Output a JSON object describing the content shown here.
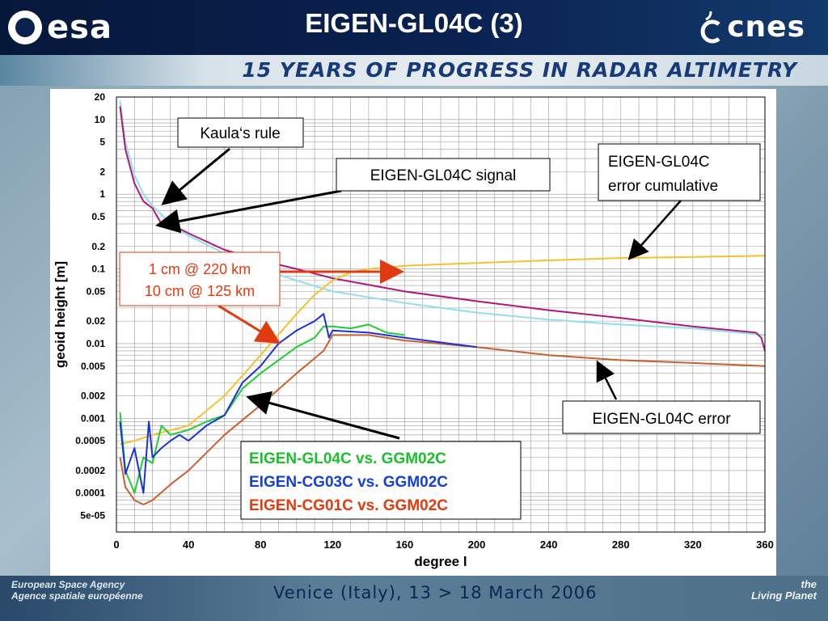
{
  "header": {
    "title": "EIGEN-GL04C (3)",
    "left_logo": "esa",
    "right_logo": "cnes",
    "banner": "15 YEARS OF PROGRESS IN RADAR ALTIMETRY"
  },
  "footer": {
    "agency_line1": "European Space Agency",
    "agency_line2": "Agence spatiale européenne",
    "event": "Venice (Italy), 13 > 18 March 2006",
    "living_line1": "the",
    "living_line2": "Living Planet"
  },
  "chart_data": {
    "type": "line",
    "xlabel": "degree l",
    "ylabel": "geoid height [m]",
    "xlim": [
      0,
      360
    ],
    "ylim": [
      3e-05,
      20
    ],
    "yscale": "log",
    "grid": true,
    "x_ticks": [
      "0",
      "40",
      "80",
      "120",
      "160",
      "200",
      "240",
      "280",
      "320",
      "360"
    ],
    "y_ticks": [
      {
        "v": 20,
        "l": "20"
      },
      {
        "v": 10,
        "l": "10"
      },
      {
        "v": 5,
        "l": "5"
      },
      {
        "v": 2,
        "l": "2"
      },
      {
        "v": 1,
        "l": "1"
      },
      {
        "v": 0.5,
        "l": "0.5"
      },
      {
        "v": 0.2,
        "l": "0.2"
      },
      {
        "v": 0.1,
        "l": "0.1"
      },
      {
        "v": 0.05,
        "l": "0.05"
      },
      {
        "v": 0.02,
        "l": "0.02"
      },
      {
        "v": 0.01,
        "l": "0.01"
      },
      {
        "v": 0.005,
        "l": "0.005"
      },
      {
        "v": 0.002,
        "l": "0.002"
      },
      {
        "v": 0.001,
        "l": "0.001"
      },
      {
        "v": 0.0005,
        "l": "0.0005"
      },
      {
        "v": 0.0002,
        "l": "0.0002"
      },
      {
        "v": 0.0001,
        "l": "0.0001"
      },
      {
        "v": 5e-05,
        "l": "5e-05"
      }
    ],
    "series": [
      {
        "name": "Kaula's rule",
        "color": "#8fe0ec",
        "x": [
          2,
          5,
          10,
          15,
          20,
          30,
          40,
          60,
          80,
          100,
          120,
          160,
          200,
          240,
          280,
          320,
          360
        ],
        "y": [
          18,
          5,
          1.8,
          1.0,
          0.7,
          0.4,
          0.28,
          0.16,
          0.1,
          0.07,
          0.05,
          0.035,
          0.026,
          0.021,
          0.018,
          0.016,
          0.013
        ]
      },
      {
        "name": "EIGEN-GL04C signal",
        "color": "#b0187a",
        "x": [
          2,
          5,
          10,
          15,
          20,
          25,
          30,
          40,
          60,
          80,
          100,
          120,
          160,
          200,
          240,
          280,
          320,
          355,
          358,
          360
        ],
        "y": [
          15,
          4,
          1.4,
          0.8,
          0.65,
          0.4,
          0.4,
          0.3,
          0.18,
          0.13,
          0.1,
          0.075,
          0.05,
          0.037,
          0.028,
          0.022,
          0.017,
          0.014,
          0.012,
          0.008
        ]
      },
      {
        "name": "EIGEN-GL04C error cumulative",
        "color": "#f2c32a",
        "x": [
          2,
          10,
          20,
          40,
          60,
          80,
          100,
          110,
          120,
          130,
          140,
          160,
          200,
          240,
          280,
          320,
          360
        ],
        "y": [
          0.00045,
          0.0005,
          0.0006,
          0.0008,
          0.002,
          0.007,
          0.025,
          0.045,
          0.07,
          0.09,
          0.1,
          0.11,
          0.12,
          0.13,
          0.14,
          0.145,
          0.15
        ]
      },
      {
        "name": "EIGEN-GL04C error",
        "color": "#c86030",
        "x": [
          2,
          5,
          10,
          15,
          20,
          30,
          40,
          60,
          80,
          100,
          115,
          120,
          140,
          160,
          200,
          240,
          280,
          320,
          360
        ],
        "y": [
          0.0003,
          0.00012,
          8e-05,
          7e-05,
          8e-05,
          0.00013,
          0.0002,
          0.0006,
          0.0015,
          0.004,
          0.008,
          0.013,
          0.013,
          0.011,
          0.009,
          0.007,
          0.006,
          0.0055,
          0.005
        ]
      },
      {
        "name": "EIGEN-GL04C vs. GGM02C",
        "color": "#22cc33",
        "x": [
          2,
          5,
          10,
          15,
          20,
          25,
          30,
          40,
          50,
          60,
          70,
          80,
          90,
          100,
          110,
          115,
          120,
          130,
          140,
          150,
          160
        ],
        "y": [
          0.0012,
          0.0002,
          0.0001,
          0.0003,
          0.00025,
          0.0008,
          0.0006,
          0.0007,
          0.0009,
          0.0011,
          0.0025,
          0.004,
          0.006,
          0.009,
          0.012,
          0.017,
          0.017,
          0.016,
          0.018,
          0.014,
          0.013
        ]
      },
      {
        "name": "EIGEN-CG03C vs. GGM02C",
        "color": "#1a32d8",
        "x": [
          2,
          5,
          10,
          15,
          18,
          20,
          25,
          30,
          35,
          40,
          50,
          60,
          70,
          80,
          90,
          100,
          110,
          115,
          118,
          120,
          140,
          160,
          200
        ],
        "y": [
          0.0009,
          0.00018,
          0.0004,
          0.0001,
          0.0009,
          0.0003,
          0.0004,
          0.0005,
          0.0006,
          0.0005,
          0.0008,
          0.0011,
          0.003,
          0.005,
          0.01,
          0.015,
          0.02,
          0.025,
          0.012,
          0.015,
          0.014,
          0.012,
          0.009
        ]
      },
      {
        "name": "EIGEN-CG01C vs. GGM02C",
        "color": "#e83a10",
        "x": [],
        "y": []
      }
    ],
    "annotations": {
      "kaula": "Kaula‘s rule",
      "signal": "EIGEN-GL04C signal",
      "cumulative_line1": "EIGEN-GL04C",
      "cumulative_line2": "error cumulative",
      "error": "EIGEN-GL04C error",
      "resolution_line1": "1 cm @ 220 km",
      "resolution_line2": "10 cm @ 125 km",
      "legend": [
        {
          "text": "EIGEN-GL04C vs. GGM02C",
          "color": "#19c02c"
        },
        {
          "text": "EIGEN-CG03C vs. GGM02C",
          "color": "#1640d6"
        },
        {
          "text": "EIGEN-CG01C vs. GGM02C",
          "color": "#e63a0c"
        }
      ]
    }
  }
}
